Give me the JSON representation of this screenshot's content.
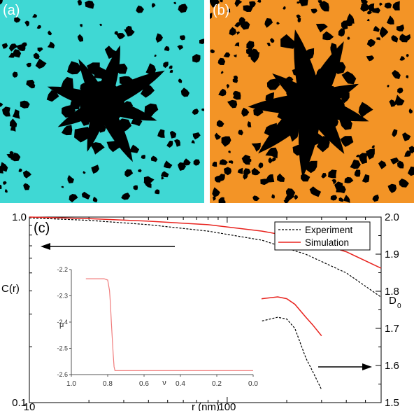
{
  "panels": {
    "a": {
      "label": "(a)",
      "colors": {
        "background": "#3fd8d4",
        "domain": "#000000"
      }
    },
    "b": {
      "label": "(b)",
      "colors": {
        "background": "#f39426",
        "domain": "#000000"
      }
    }
  },
  "chart_data": [
    {
      "type": "line",
      "panel_label": "(c)",
      "xlabel": "r (nm)",
      "xscale": "log",
      "xlim": [
        10,
        600
      ],
      "x_tick_labels": [
        "10",
        "100"
      ],
      "ylabel_left": "C(r)",
      "yscale_left": "log",
      "ylim_left": [
        0.1,
        1.0
      ],
      "y_left_tick_labels": [
        "0.1",
        "1.0"
      ],
      "ylabel_right": "D",
      "ylabel_right_sub": "0",
      "ylim_right": [
        1.5,
        2.0
      ],
      "y_right_tick_labels": [
        "1.5",
        "1.6",
        "1.7",
        "1.8",
        "1.9",
        "2.0"
      ],
      "legend": {
        "position": "top-right"
      },
      "colors": {
        "experiment": "#000000",
        "simulation": "#e8231e"
      },
      "series": [
        {
          "name": "Experiment",
          "axis": "left",
          "style": "dashed",
          "x": [
            10,
            20,
            40,
            80,
            150,
            250,
            400,
            600
          ],
          "y": [
            0.99,
            0.96,
            0.91,
            0.84,
            0.75,
            0.63,
            0.5,
            0.37
          ]
        },
        {
          "name": "Simulation",
          "axis": "left",
          "style": "solid",
          "x": [
            10,
            20,
            40,
            80,
            150,
            250,
            400,
            600
          ],
          "y": [
            1.0,
            0.98,
            0.95,
            0.91,
            0.84,
            0.76,
            0.65,
            0.53
          ]
        },
        {
          "name": "",
          "axis": "right",
          "style": "dashed",
          "x": [
            34,
            40,
            50,
            60,
            70,
            80,
            90,
            100,
            120,
            150,
            180,
            200,
            220,
            250,
            270,
            300
          ],
          "y": [
            1.775,
            1.77,
            1.76,
            1.745,
            1.725,
            1.71,
            1.705,
            1.705,
            1.71,
            1.72,
            1.73,
            1.725,
            1.7,
            1.62,
            1.585,
            1.535
          ]
        },
        {
          "name": "",
          "axis": "right",
          "style": "solid",
          "x": [
            34,
            40,
            50,
            60,
            70,
            80,
            90,
            100,
            120,
            150,
            180,
            200,
            220,
            250,
            270,
            300
          ],
          "y": [
            1.87,
            1.86,
            1.83,
            1.79,
            1.765,
            1.745,
            1.74,
            1.745,
            1.76,
            1.78,
            1.785,
            1.78,
            1.765,
            1.73,
            1.71,
            1.68
          ]
        }
      ]
    },
    {
      "type": "line",
      "role": "inset",
      "xlabel": "ν",
      "xlim": [
        1.0,
        0.0
      ],
      "x_tick_labels": [
        "1.0",
        "0.8",
        "0.6",
        "0.4",
        "0.2",
        "0.0"
      ],
      "ylabel": "μ",
      "ylim": [
        -2.6,
        -2.2
      ],
      "y_tick_labels": [
        "-2.2",
        "-2.3",
        "-2.4",
        "-2.5",
        "-2.6"
      ],
      "series": [
        {
          "name": "",
          "color": "#f07c7c",
          "x": [
            0.92,
            0.82,
            0.8,
            0.79,
            0.785,
            0.78,
            0.775,
            0.77,
            0.765,
            0.76,
            0.74,
            0.0
          ],
          "y": [
            -2.235,
            -2.235,
            -2.24,
            -2.28,
            -2.33,
            -2.4,
            -2.46,
            -2.52,
            -2.57,
            -2.585,
            -2.585,
            -2.585
          ]
        }
      ]
    }
  ]
}
